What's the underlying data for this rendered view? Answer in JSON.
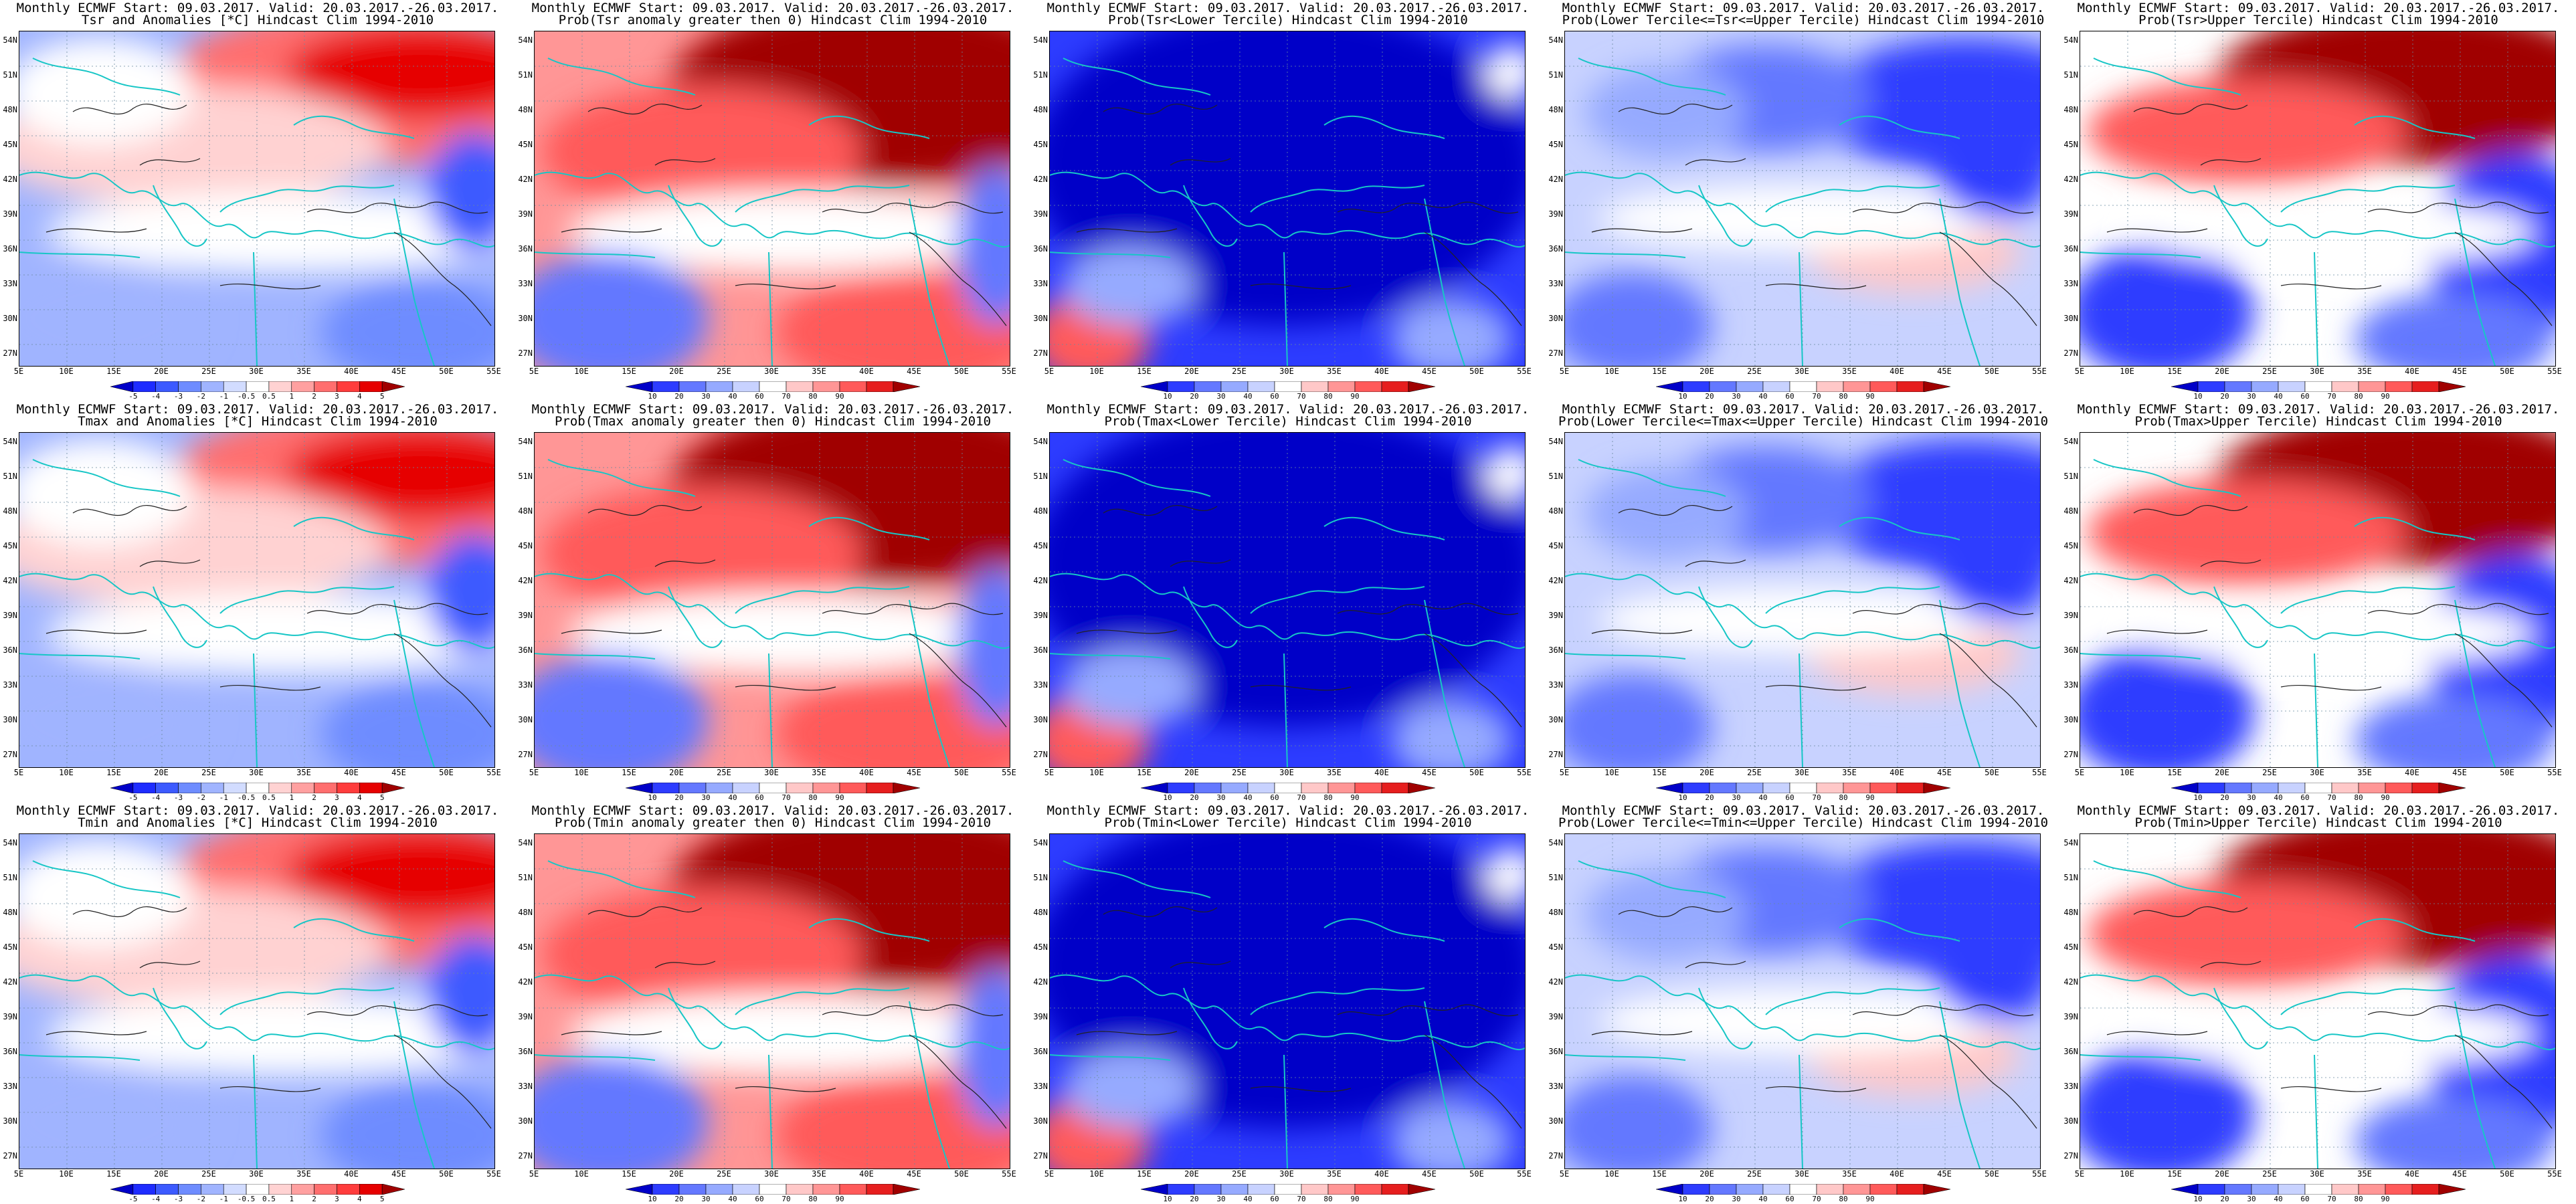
{
  "header": "Monthly ECMWF Start: 09.03.2017. Valid: 20.03.2017.-26.03.2017.",
  "latitude_labels": [
    "54N",
    "51N",
    "48N",
    "45N",
    "42N",
    "39N",
    "36N",
    "33N",
    "30N",
    "27N"
  ],
  "longitude_labels": [
    "5E",
    "10E",
    "15E",
    "20E",
    "25E",
    "30E",
    "35E",
    "40E",
    "45E",
    "50E",
    "55E"
  ],
  "colorbars": {
    "anomaly": {
      "labels": [
        "-5",
        "-4",
        "-3",
        "-2",
        "-1",
        "-0.5",
        "0.5",
        "1",
        "2",
        "3",
        "4",
        "5"
      ],
      "colors": [
        "#0000c8",
        "#1e2cff",
        "#3c5aff",
        "#6e8cff",
        "#a0b4ff",
        "#d2dcff",
        "#ffffff",
        "#ffd2d2",
        "#ffa0a0",
        "#ff6e6e",
        "#ff3c3c",
        "#e60000",
        "#a00000"
      ]
    },
    "probability": {
      "labels": [
        "10",
        "20",
        "30",
        "40",
        "60",
        "70",
        "80",
        "90"
      ],
      "colors": [
        "#0000c8",
        "#2d3cff",
        "#6478ff",
        "#96aaff",
        "#c8d2ff",
        "#ffffff",
        "#ffc8c8",
        "#ff9696",
        "#ff5a5a",
        "#e61e1e",
        "#a00000"
      ]
    }
  },
  "rows": [
    {
      "variable": "Tsr",
      "panels": [
        {
          "subtitle": "Tsr and Anomalies [*C] Hindcast Clim 1994-2010",
          "scale": "anomaly",
          "pattern": "anom"
        },
        {
          "subtitle": "Prob(Tsr anomaly greater then 0) Hindcast Clim 1994-2010",
          "scale": "probability",
          "pattern": "pos"
        },
        {
          "subtitle": "Prob(Tsr<Lower Tercile) Hindcast Clim 1994-2010",
          "scale": "probability",
          "pattern": "lower"
        },
        {
          "subtitle": "Prob(Lower Tercile<=Tsr<=Upper Tercile) Hindcast Clim 1994-2010",
          "scale": "probability",
          "pattern": "middle"
        },
        {
          "subtitle": "Prob(Tsr>Upper Tercile) Hindcast Clim 1994-2010",
          "scale": "probability",
          "pattern": "upper"
        }
      ]
    },
    {
      "variable": "Tmax",
      "panels": [
        {
          "subtitle": "Tmax and Anomalies [*C] Hindcast Clim 1994-2010",
          "scale": "anomaly",
          "pattern": "anom"
        },
        {
          "subtitle": "Prob(Tmax anomaly greater then 0) Hindcast Clim 1994-2010",
          "scale": "probability",
          "pattern": "pos"
        },
        {
          "subtitle": "Prob(Tmax<Lower Tercile) Hindcast Clim 1994-2010",
          "scale": "probability",
          "pattern": "lower"
        },
        {
          "subtitle": "Prob(Lower Tercile<=Tmax<=Upper Tercile) Hindcast Clim 1994-2010",
          "scale": "probability",
          "pattern": "middle"
        },
        {
          "subtitle": "Prob(Tmax>Upper Tercile) Hindcast Clim 1994-2010",
          "scale": "probability",
          "pattern": "upper"
        }
      ]
    },
    {
      "variable": "Tmin",
      "panels": [
        {
          "subtitle": "Tmin and Anomalies [*C] Hindcast Clim 1994-2010",
          "scale": "anomaly",
          "pattern": "anom"
        },
        {
          "subtitle": "Prob(Tmin anomaly greater then 0) Hindcast Clim 1994-2010",
          "scale": "probability",
          "pattern": "pos"
        },
        {
          "subtitle": "Prob(Tmin<Lower Tercile) Hindcast Clim 1994-2010",
          "scale": "probability",
          "pattern": "lower"
        },
        {
          "subtitle": "Prob(Lower Tercile<=Tmin<=Upper Tercile) Hindcast Clim 1994-2010",
          "scale": "probability",
          "pattern": "middle"
        },
        {
          "subtitle": "Prob(Tmin>Upper Tercile) Hindcast Clim 1994-2010",
          "scale": "probability",
          "pattern": "upper"
        }
      ]
    }
  ]
}
